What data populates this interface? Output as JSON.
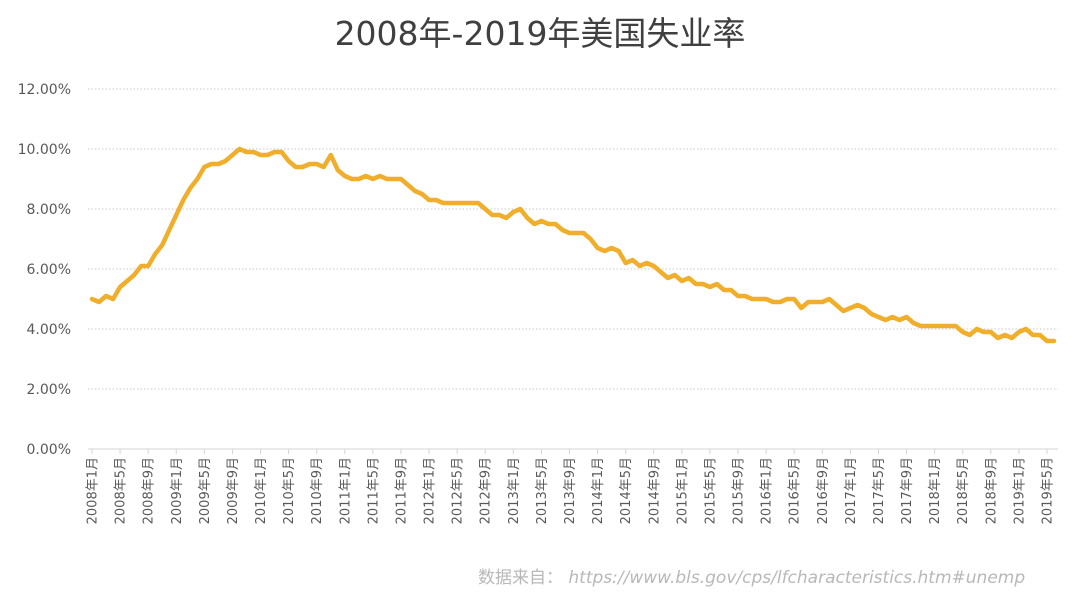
{
  "chart_data": {
    "type": "line",
    "title": "2008年-2019年美国失业率",
    "xlabel": "",
    "ylabel": "",
    "ylim": [
      0,
      12
    ],
    "y_ticks": [
      "0.00%",
      "2.00%",
      "4.00%",
      "6.00%",
      "8.00%",
      "10.00%",
      "12.00%"
    ],
    "x_ticks": [
      "2008年1月",
      "2008年5月",
      "2008年9月",
      "2009年1月",
      "2009年5月",
      "2009年9月",
      "2010年1月",
      "2010年5月",
      "2010年9月",
      "2011年1月",
      "2011年5月",
      "2011年9月",
      "2012年1月",
      "2012年5月",
      "2012年9月",
      "2013年1月",
      "2013年5月",
      "2013年9月",
      "2014年1月",
      "2014年5月",
      "2014年9月",
      "2015年1月",
      "2015年5月",
      "2015年9月",
      "2016年1月",
      "2016年5月",
      "2016年9月",
      "2017年1月",
      "2017年5月",
      "2017年9月",
      "2018年1月",
      "2018年5月",
      "2018年9月",
      "2019年1月",
      "2019年5月"
    ],
    "grid": true,
    "line_color": "#F0AE2B",
    "series": [
      {
        "values": [
          5.0,
          4.9,
          5.1,
          5.0,
          5.4,
          5.6,
          5.8,
          6.1,
          6.1,
          6.5,
          6.8,
          7.3,
          7.8,
          8.3,
          8.7,
          9.0,
          9.4,
          9.5,
          9.5,
          9.6,
          9.8,
          10.0,
          9.9,
          9.9,
          9.8,
          9.8,
          9.9,
          9.9,
          9.6,
          9.4,
          9.4,
          9.5,
          9.5,
          9.4,
          9.8,
          9.3,
          9.1,
          9.0,
          9.0,
          9.1,
          9.0,
          9.1,
          9.0,
          9.0,
          9.0,
          8.8,
          8.6,
          8.5,
          8.3,
          8.3,
          8.2,
          8.2,
          8.2,
          8.2,
          8.2,
          8.2,
          8.0,
          7.8,
          7.8,
          7.7,
          7.9,
          8.0,
          7.7,
          7.5,
          7.6,
          7.5,
          7.5,
          7.3,
          7.2,
          7.2,
          7.2,
          7.0,
          6.7,
          6.6,
          6.7,
          6.6,
          6.2,
          6.3,
          6.1,
          6.2,
          6.1,
          5.9,
          5.7,
          5.8,
          5.6,
          5.7,
          5.5,
          5.5,
          5.4,
          5.5,
          5.3,
          5.3,
          5.1,
          5.1,
          5.0,
          5.0,
          5.0,
          4.9,
          4.9,
          5.0,
          5.0,
          4.7,
          4.9,
          4.9,
          4.9,
          5.0,
          4.8,
          4.6,
          4.7,
          4.8,
          4.7,
          4.5,
          4.4,
          4.3,
          4.4,
          4.3,
          4.4,
          4.2,
          4.1,
          4.1,
          4.1,
          4.1,
          4.1,
          4.1,
          3.9,
          3.8,
          4.0,
          3.9,
          3.9,
          3.7,
          3.8,
          3.7,
          3.9,
          4.0,
          3.8,
          3.8,
          3.6,
          3.6
        ]
      }
    ]
  },
  "source": {
    "label": "数据来自：",
    "url": "https://www.bls.gov/cps/lfcharacteristics.htm#unemp"
  }
}
